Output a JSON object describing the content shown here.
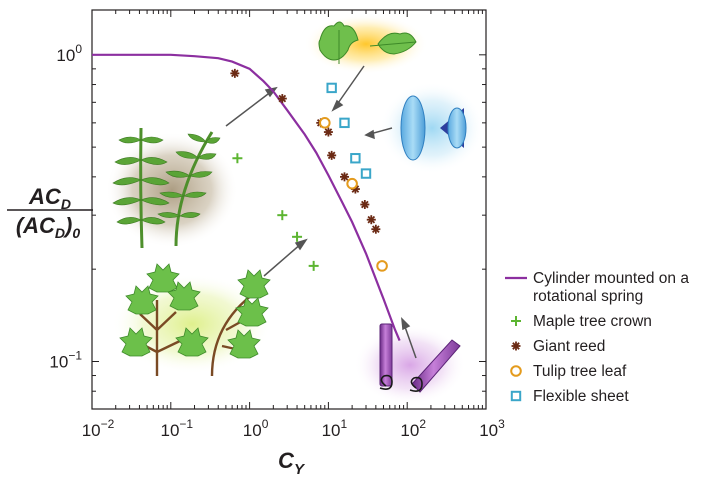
{
  "chart_data": {
    "type": "scatter",
    "xscale": "log",
    "yscale": "log",
    "xlim": [
      0.01,
      1000
    ],
    "ylim": [
      0.07,
      1.4
    ],
    "x_ticks": [
      0.01,
      0.1,
      1,
      10,
      100,
      1000
    ],
    "x_tick_labels": [
      {
        "base": "10",
        "exp": "−2"
      },
      {
        "base": "10",
        "exp": "−1"
      },
      {
        "base": "10",
        "exp": "0"
      },
      {
        "base": "10",
        "exp": "1"
      },
      {
        "base": "10",
        "exp": "2"
      },
      {
        "base": "10",
        "exp": "3"
      }
    ],
    "y_ticks": [
      0.1,
      1
    ],
    "y_tick_labels": [
      {
        "base": "10",
        "exp": "−1"
      },
      {
        "base": "10",
        "exp": "0"
      }
    ],
    "xlabel": {
      "main": "C",
      "sub": "Y"
    },
    "ylabel": {
      "numerator": {
        "main": "AC",
        "sub": "D"
      },
      "denominator": {
        "main": "(AC",
        "sub": "D",
        "close": ")",
        "sub2": "0"
      }
    },
    "grid": false,
    "legend_position": "right",
    "series": [
      {
        "name": "Cylinder mounted on a rotational spring",
        "marker": "line",
        "color": "#8c2fa0",
        "points": [
          [
            0.01,
            1.0
          ],
          [
            0.05,
            1.0
          ],
          [
            0.1,
            1.0
          ],
          [
            0.2,
            0.99
          ],
          [
            0.4,
            0.975
          ],
          [
            0.6,
            0.95
          ],
          [
            1.0,
            0.9
          ],
          [
            1.5,
            0.82
          ],
          [
            2.0,
            0.76
          ],
          [
            3.0,
            0.66
          ],
          [
            5.0,
            0.55
          ],
          [
            7.0,
            0.48
          ],
          [
            10.0,
            0.405
          ],
          [
            15.0,
            0.33
          ],
          [
            20.0,
            0.285
          ],
          [
            30.0,
            0.225
          ],
          [
            50.0,
            0.16
          ],
          [
            70.0,
            0.127
          ],
          [
            80.0,
            0.117
          ]
        ]
      },
      {
        "name": "Maple tree crown",
        "marker": "plus",
        "color": "#5cb531",
        "points": [
          [
            0.7,
            0.46
          ],
          [
            2.6,
            0.3
          ],
          [
            4.0,
            0.255
          ],
          [
            6.5,
            0.205
          ]
        ]
      },
      {
        "name": "Giant reed",
        "marker": "star",
        "color": "#6b2a14",
        "points": [
          [
            0.65,
            0.87
          ],
          [
            2.6,
            0.72
          ],
          [
            8.0,
            0.6
          ],
          [
            10.0,
            0.56
          ],
          [
            11.0,
            0.47
          ],
          [
            16.0,
            0.4
          ],
          [
            22.0,
            0.365
          ],
          [
            29.0,
            0.325
          ],
          [
            35.0,
            0.29
          ],
          [
            40.0,
            0.27
          ]
        ]
      },
      {
        "name": "Tulip tree leaf",
        "marker": "circle",
        "color": "#e49b1d",
        "points": [
          [
            9.0,
            0.6
          ],
          [
            20.0,
            0.38
          ],
          [
            48.0,
            0.205
          ]
        ]
      },
      {
        "name": "Flexible sheet",
        "marker": "square",
        "color": "#3aa6c9",
        "points": [
          [
            11.0,
            0.78
          ],
          [
            16.0,
            0.6
          ],
          [
            22.0,
            0.46
          ],
          [
            30.0,
            0.41
          ]
        ]
      }
    ]
  }
}
